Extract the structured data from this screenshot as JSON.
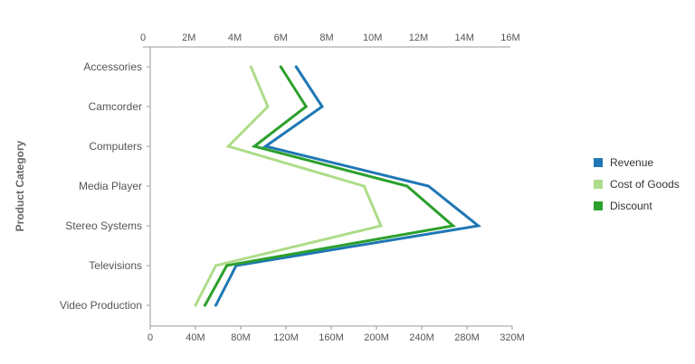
{
  "chart_data": {
    "type": "line",
    "orientation": "horizontal",
    "categories": [
      "Accessories",
      "Camcorder",
      "Computers",
      "Media Player",
      "Stereo Systems",
      "Televisions",
      "Video Production"
    ],
    "ylabel": "Product Category",
    "top_axis": {
      "ticks": [
        "0",
        "2M",
        "4M",
        "6M",
        "8M",
        "10M",
        "12M",
        "14M",
        "16M"
      ],
      "range": [
        0,
        16000000
      ]
    },
    "bottom_axis": {
      "ticks": [
        "0",
        "40M",
        "80M",
        "120M",
        "160M",
        "200M",
        "240M",
        "280M",
        "320M"
      ],
      "range": [
        0,
        320000000
      ]
    },
    "series": [
      {
        "name": "Revenue",
        "color": "#1f77b4",
        "axis": "bottom",
        "values": [
          129000000,
          152000000,
          102000000,
          246000000,
          290000000,
          76000000,
          58000000
        ]
      },
      {
        "name": "Cost of Goods",
        "color": "#aedc8a",
        "axis": "bottom",
        "values": [
          89000000,
          104000000,
          69000000,
          189000000,
          204000000,
          58000000,
          40000000
        ]
      },
      {
        "name": "Discount",
        "color": "#2ca02c",
        "axis": "top",
        "values": [
          6000000,
          7100000,
          4850000,
          11500000,
          13500000,
          3650000,
          2700000
        ]
      }
    ],
    "legend_position": "right",
    "grid": false
  }
}
